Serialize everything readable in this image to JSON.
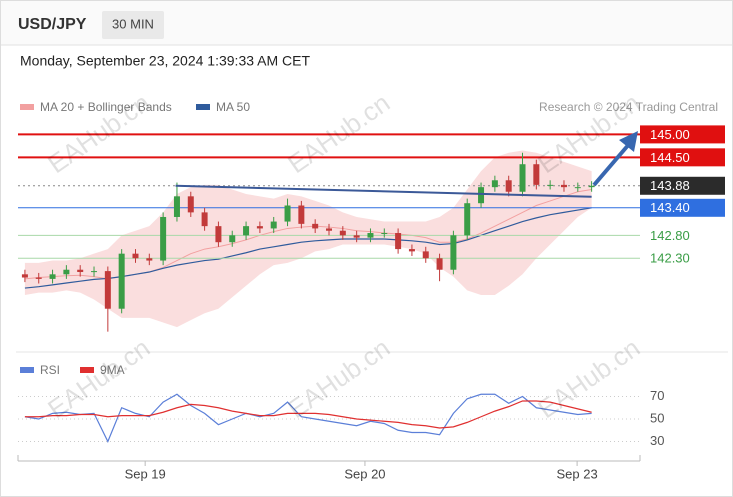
{
  "header": {
    "symbol": "USD/JPY",
    "timeframe": "30 MIN",
    "timestamp": "Monday, September 23, 2024 1:39:33 AM CET",
    "credit": "Research © 2024 Trading Central",
    "watermark": "EAHub.cn"
  },
  "chart_data": [
    {
      "type": "candlestick",
      "x": [
        0.5,
        1.5,
        2.5,
        3.5,
        4.5,
        5.5,
        6.5,
        7.5,
        8.5,
        9.5,
        10.5,
        11.5,
        12.5,
        13.5,
        14.5,
        15.5,
        16.5,
        17.5,
        18.5,
        19.5,
        20.5,
        21.5,
        22.5,
        23.5,
        24.5,
        25.5,
        26.5,
        27.5,
        28.5,
        29.5,
        30.5,
        31.5,
        32.5,
        33.5,
        34.5,
        35.5,
        36.5,
        37.5,
        38.5,
        39.5,
        40.5,
        41.5
      ],
      "open": [
        141.95,
        141.88,
        141.85,
        141.95,
        142.05,
        142.0,
        142.02,
        141.2,
        142.4,
        142.3,
        142.25,
        143.2,
        143.65,
        143.3,
        143.0,
        142.65,
        142.8,
        143.0,
        142.95,
        143.1,
        143.45,
        143.05,
        142.95,
        142.9,
        142.8,
        142.75,
        142.85,
        142.85,
        142.5,
        142.45,
        142.3,
        142.05,
        142.8,
        143.5,
        143.85,
        144.0,
        143.75,
        144.35,
        143.9,
        143.9,
        143.85,
        143.85
      ],
      "high": [
        142.05,
        141.98,
        142.05,
        142.15,
        142.15,
        142.12,
        142.12,
        142.5,
        142.5,
        142.4,
        143.3,
        143.95,
        143.75,
        143.4,
        143.1,
        142.9,
        143.1,
        143.1,
        143.2,
        143.6,
        143.55,
        143.15,
        143.05,
        143.0,
        142.9,
        142.95,
        142.95,
        142.95,
        142.6,
        142.55,
        142.4,
        142.9,
        143.6,
        143.95,
        144.1,
        144.1,
        144.6,
        144.45,
        144.0,
        144.0,
        143.95,
        143.98
      ],
      "low": [
        141.78,
        141.75,
        141.75,
        141.85,
        141.9,
        141.9,
        140.7,
        141.1,
        142.2,
        142.15,
        142.15,
        143.1,
        143.2,
        142.9,
        142.55,
        142.55,
        142.7,
        142.85,
        142.85,
        143.0,
        142.95,
        142.85,
        142.8,
        142.7,
        142.65,
        142.65,
        142.75,
        142.4,
        142.35,
        142.2,
        141.8,
        141.95,
        142.7,
        143.4,
        143.75,
        143.65,
        143.65,
        143.8,
        143.8,
        143.75,
        143.75,
        143.75
      ],
      "close": [
        141.88,
        141.85,
        141.95,
        142.05,
        142.0,
        142.02,
        141.2,
        142.4,
        142.3,
        142.25,
        143.2,
        143.65,
        143.3,
        143.0,
        142.65,
        142.8,
        143.0,
        142.95,
        143.1,
        143.45,
        143.05,
        142.95,
        142.9,
        142.8,
        142.75,
        142.85,
        142.85,
        142.5,
        142.45,
        142.3,
        142.05,
        142.8,
        143.5,
        143.85,
        144.0,
        143.75,
        144.35,
        143.9,
        143.9,
        143.85,
        143.85,
        143.88
      ],
      "up_color": "#3a9d46",
      "down_color": "#c23a3a",
      "series": [
        {
          "name": "MA 20 + Bollinger Bands",
          "color": "#f2a0a0",
          "values": [
            141.85,
            141.88,
            141.9,
            141.92,
            141.93,
            141.9,
            141.85,
            141.9,
            141.95,
            142.0,
            142.1,
            142.25,
            142.4,
            142.5,
            142.55,
            142.62,
            142.7,
            142.8,
            142.88,
            142.95,
            142.98,
            143.0,
            142.98,
            142.95,
            142.9,
            142.88,
            142.85,
            142.83,
            142.8,
            142.75,
            142.65,
            142.65,
            142.72,
            142.85,
            143.0,
            143.15,
            143.3,
            143.45,
            143.55,
            143.65,
            143.75,
            143.8
          ],
          "upper": [
            142.2,
            142.2,
            142.25,
            142.25,
            142.3,
            142.4,
            142.5,
            142.8,
            142.9,
            143.0,
            143.3,
            143.7,
            143.85,
            143.9,
            143.9,
            143.8,
            143.7,
            143.65,
            143.6,
            143.7,
            143.65,
            143.55,
            143.45,
            143.3,
            143.2,
            143.15,
            143.1,
            143.1,
            143.1,
            143.1,
            143.2,
            143.4,
            143.8,
            144.2,
            144.5,
            144.6,
            144.65,
            144.6,
            144.5,
            144.4,
            144.3,
            144.2
          ],
          "lower": [
            141.5,
            141.55,
            141.55,
            141.6,
            141.55,
            141.4,
            141.2,
            141.0,
            141.0,
            141.0,
            140.9,
            140.8,
            140.95,
            141.1,
            141.2,
            141.45,
            141.7,
            141.95,
            142.15,
            142.2,
            142.3,
            142.45,
            142.5,
            142.6,
            142.6,
            142.6,
            142.6,
            142.55,
            142.5,
            142.4,
            142.1,
            141.9,
            141.6,
            141.5,
            141.5,
            141.7,
            141.95,
            142.3,
            142.6,
            142.9,
            143.2,
            143.4
          ]
        },
        {
          "name": "MA 50",
          "color": "#2f5b9c",
          "values": [
            141.65,
            141.68,
            141.72,
            141.76,
            141.8,
            141.84,
            141.86,
            141.9,
            141.95,
            142.0,
            142.08,
            142.15,
            142.2,
            142.25,
            142.28,
            142.35,
            142.42,
            142.5,
            142.55,
            142.6,
            142.65,
            142.68,
            142.7,
            142.72,
            142.72,
            142.72,
            142.72,
            142.7,
            142.68,
            142.65,
            142.6,
            142.62,
            142.7,
            142.8,
            142.9,
            143.0,
            143.1,
            143.18,
            143.25,
            143.3,
            143.35,
            143.4
          ]
        }
      ],
      "trendline": {
        "x": [
          11.4,
          41.5
        ],
        "y": [
          143.88,
          143.64
        ],
        "color": "#3b5998"
      },
      "levels": [
        {
          "value": 145.0,
          "label": "145.00",
          "color": "#e01010",
          "box": true
        },
        {
          "value": 144.5,
          "label": "144.50",
          "color": "#e01010",
          "box": true
        },
        {
          "value": 143.88,
          "label": "143.88",
          "color": "#2b2b2b",
          "box": true
        },
        {
          "value": 143.4,
          "label": "143.40",
          "color": "#2f6fe0",
          "box": true
        },
        {
          "value": 142.8,
          "label": "142.80",
          "color": "#3a9d46",
          "box": false
        },
        {
          "value": 142.3,
          "label": "142.30",
          "color": "#3a9d46",
          "box": false
        }
      ],
      "xlim": [
        0,
        45
      ],
      "ylim": [
        140.3,
        145.75
      ]
    },
    {
      "type": "line",
      "x": [
        0.5,
        1.5,
        2.5,
        3.5,
        4.5,
        5.5,
        6.5,
        7.5,
        8.5,
        9.5,
        10.5,
        11.5,
        12.5,
        13.5,
        14.5,
        15.5,
        16.5,
        17.5,
        18.5,
        19.5,
        20.5,
        21.5,
        22.5,
        23.5,
        24.5,
        25.5,
        26.5,
        27.5,
        28.5,
        29.5,
        30.5,
        31.5,
        32.5,
        33.5,
        34.5,
        35.5,
        36.5,
        37.5,
        38.5,
        39.5,
        40.5,
        41.5
      ],
      "series": [
        {
          "name": "RSI",
          "color": "#5b7fd8",
          "values": [
            52,
            50,
            55,
            56,
            54,
            55,
            30,
            60,
            55,
            52,
            65,
            72,
            62,
            55,
            45,
            50,
            55,
            52,
            55,
            65,
            52,
            50,
            48,
            46,
            44,
            48,
            46,
            40,
            38,
            38,
            36,
            55,
            68,
            72,
            72,
            64,
            70,
            60,
            58,
            56,
            54,
            55
          ]
        },
        {
          "name": "9MA",
          "color": "#e03030",
          "values": [
            52,
            52,
            53,
            53,
            54,
            54,
            52,
            53,
            53,
            53,
            56,
            60,
            63,
            62,
            60,
            57,
            55,
            53,
            53,
            55,
            55,
            55,
            54,
            52,
            50,
            49,
            48,
            47,
            45,
            44,
            42,
            43,
            47,
            52,
            57,
            61,
            66,
            66,
            65,
            62,
            59,
            56
          ]
        }
      ],
      "xlim": [
        0,
        45
      ],
      "ylim": [
        18,
        98
      ],
      "yticks": [
        30,
        50,
        70
      ],
      "xticks": [
        {
          "value": 9.2,
          "label": "Sep 19"
        },
        {
          "value": 25.1,
          "label": "Sep 20"
        },
        {
          "value": 40.45,
          "label": "Sep 23"
        }
      ]
    }
  ]
}
